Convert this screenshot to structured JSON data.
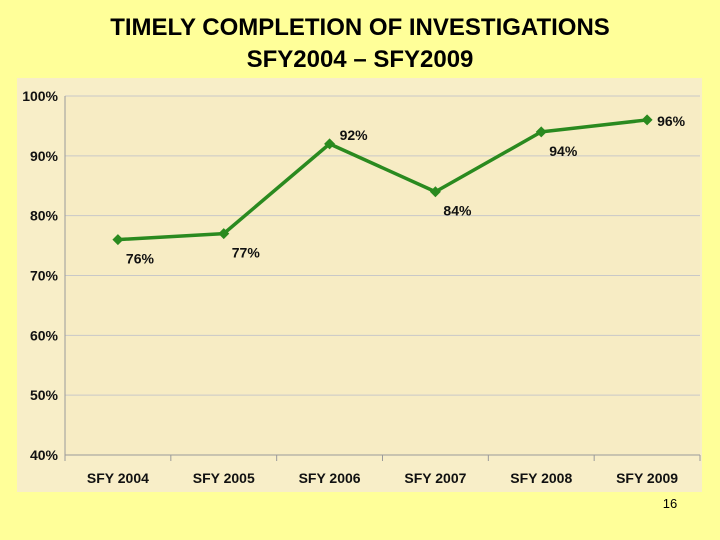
{
  "slide": {
    "title_line1": "TIMELY COMPLETION OF INVESTIGATIONS",
    "title_line2": "SFY2004 – SFY2009",
    "page_number": "16"
  },
  "colors": {
    "slide_background": "#ffff99",
    "plot_background": "#f8eec8",
    "line": "#2a8a1f",
    "grid": "#c8c8c8"
  },
  "chart_data": {
    "type": "line",
    "title": "",
    "xlabel": "",
    "ylabel": "",
    "categories": [
      "SFY 2004",
      "SFY 2005",
      "SFY 2006",
      "SFY 2007",
      "SFY 2008",
      "SFY 2009"
    ],
    "series": [
      {
        "values": [
          76,
          77,
          92,
          84,
          94,
          96
        ]
      }
    ],
    "data_labels": [
      "76%",
      "77%",
      "92%",
      "84%",
      "94%",
      "96%"
    ],
    "data_label_position": [
      "below",
      "below",
      "above",
      "below",
      "below",
      "right"
    ],
    "ylim": [
      40,
      100
    ],
    "yticks": [
      40,
      50,
      60,
      70,
      80,
      90,
      100
    ],
    "ytick_labels": [
      "40%",
      "50%",
      "60%",
      "70%",
      "80%",
      "90%",
      "100%"
    ],
    "marker": "diamond",
    "grid": true,
    "legend": "none"
  }
}
